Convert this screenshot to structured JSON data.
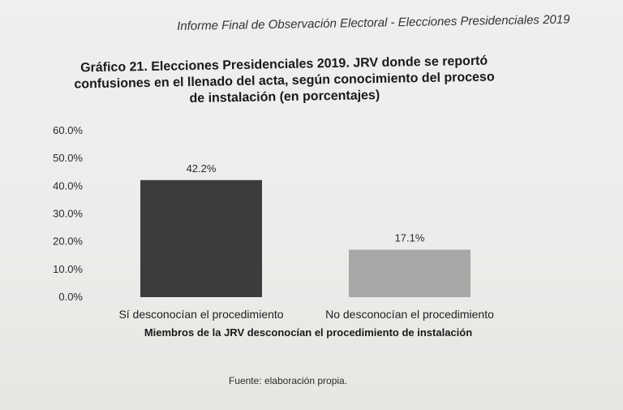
{
  "header": {
    "running_title": "Informe Final de Observación Electoral - Elecciones Presidenciales 2019"
  },
  "chart_data": {
    "type": "bar",
    "title_lines": [
      "Gráfico 21. Elecciones Presidenciales 2019. JRV donde se reportó",
      "confusiones en el llenado del acta, según conocimiento del proceso",
      "de instalación (en porcentajes)"
    ],
    "categories": [
      "Sí desconocían el procedimiento",
      "No desconocían el procedimiento"
    ],
    "values": [
      42.2,
      17.1
    ],
    "data_labels": [
      "42.2%",
      "17.1%"
    ],
    "bar_colors": [
      "#3c3c3c",
      "#a8a8a6"
    ],
    "xlabel": "Miembros de la JRV desconocían el procedimiento de instalación",
    "ylabel": "",
    "ylim": [
      0,
      60
    ],
    "yticks": [
      "0.0%",
      "10.0%",
      "20.0%",
      "30.0%",
      "40.0%",
      "50.0%",
      "60.0%"
    ],
    "grid": false,
    "legend": "none"
  },
  "footer": {
    "source": "Fuente: elaboración propia."
  }
}
